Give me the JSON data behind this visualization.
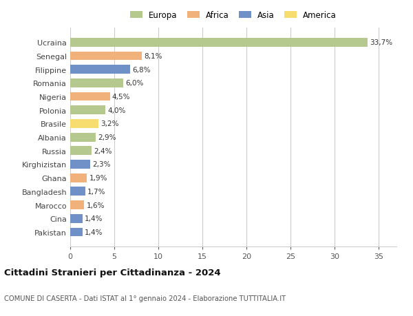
{
  "countries": [
    "Ucraina",
    "Senegal",
    "Filippine",
    "Romania",
    "Nigeria",
    "Polonia",
    "Brasile",
    "Albania",
    "Russia",
    "Kirghizistan",
    "Ghana",
    "Bangladesh",
    "Marocco",
    "Cina",
    "Pakistan"
  ],
  "values": [
    33.7,
    8.1,
    6.8,
    6.0,
    4.5,
    4.0,
    3.2,
    2.9,
    2.4,
    2.3,
    1.9,
    1.7,
    1.6,
    1.4,
    1.4
  ],
  "labels": [
    "33,7%",
    "8,1%",
    "6,8%",
    "6,0%",
    "4,5%",
    "4,0%",
    "3,2%",
    "2,9%",
    "2,4%",
    "2,3%",
    "1,9%",
    "1,7%",
    "1,6%",
    "1,4%",
    "1,4%"
  ],
  "continents": [
    "Europa",
    "Africa",
    "Asia",
    "Europa",
    "Africa",
    "Europa",
    "America",
    "Europa",
    "Europa",
    "Asia",
    "Africa",
    "Asia",
    "Africa",
    "Asia",
    "Asia"
  ],
  "colors": {
    "Europa": "#b5c98e",
    "Africa": "#f0b27a",
    "Asia": "#7090c8",
    "America": "#f7dc6f"
  },
  "legend_order": [
    "Europa",
    "Africa",
    "Asia",
    "America"
  ],
  "title": "Cittadini Stranieri per Cittadinanza - 2024",
  "subtitle": "COMUNE DI CASERTA - Dati ISTAT al 1° gennaio 2024 - Elaborazione TUTTITALIA.IT",
  "xlim": [
    0,
    37
  ],
  "xticks": [
    0,
    5,
    10,
    15,
    20,
    25,
    30,
    35
  ],
  "background_color": "#ffffff",
  "grid_color": "#cccccc",
  "bar_height": 0.65
}
